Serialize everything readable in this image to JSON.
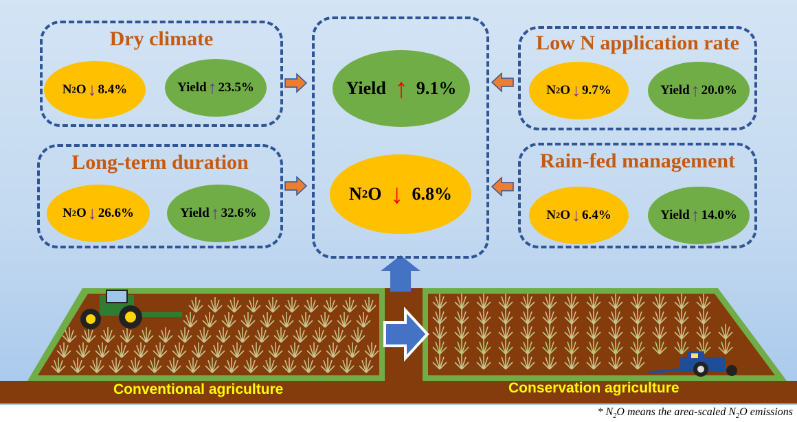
{
  "factors": [
    {
      "title": "Dry climate",
      "n2o": "8.4%",
      "yield": "23.5%"
    },
    {
      "title": "Long-term duration",
      "n2o": "26.6%",
      "yield": "32.6%"
    },
    {
      "title": "Low N application rate",
      "n2o": "9.7%",
      "yield": "20.0%"
    },
    {
      "title": "Rain-fed management",
      "n2o": "6.4%",
      "yield": "14.0%"
    }
  ],
  "labels": {
    "n2o_main": "N",
    "n2o_sub": "2",
    "n2o_o": "O",
    "yield": "Yield"
  },
  "center": {
    "yield": "9.1%",
    "n2o": "6.8%"
  },
  "fields": {
    "left": "Conventional agriculture",
    "right": "Conservation agriculture"
  },
  "footnote": {
    "a": "* N",
    "b": "2",
    "c": "O means the area-scaled N",
    "d": "2",
    "e": "O emissions"
  },
  "colors": {
    "n2o": "#ffc000",
    "yield": "#70ad47",
    "title": "#c55a11",
    "border": "#2f5597",
    "arrow_small": "#ed7d31",
    "arrow_big": "#4472c4",
    "soil": "#843c0c",
    "grass": "#70ad47"
  }
}
